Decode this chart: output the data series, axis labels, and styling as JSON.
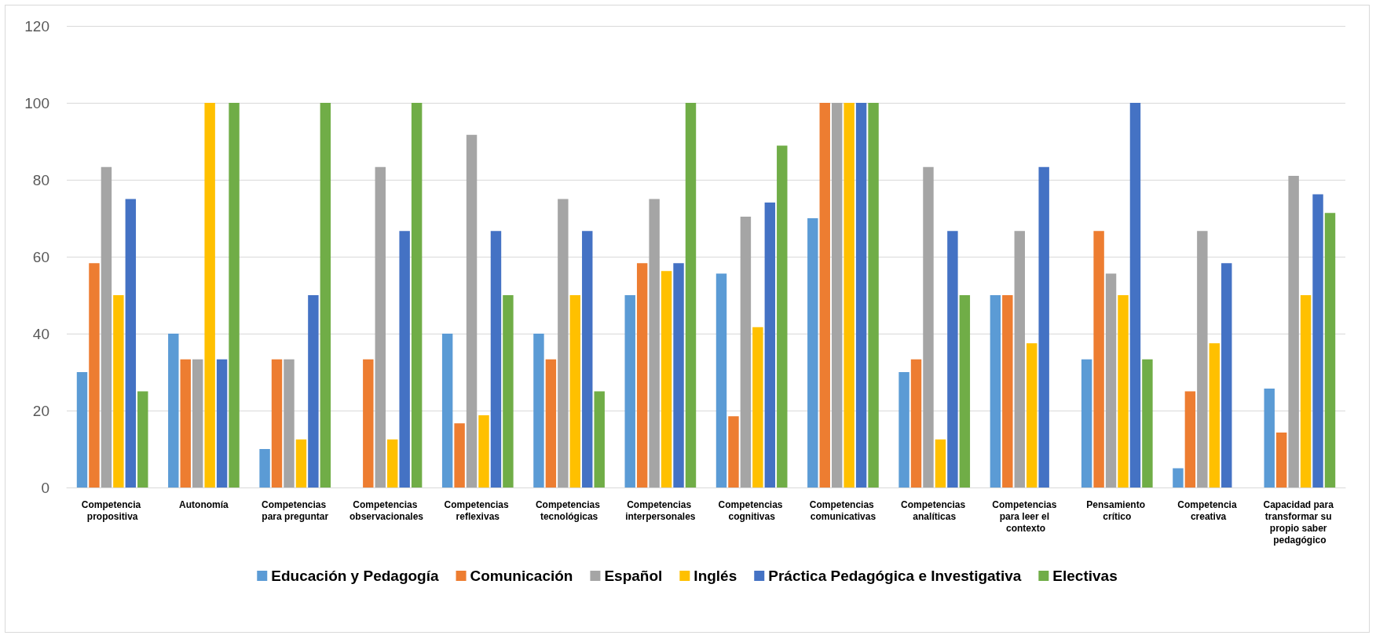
{
  "chart_data": {
    "type": "bar",
    "categories": [
      "Competencia propositiva",
      "Autonomía",
      "Competencias para preguntar",
      "Competencias observacionales",
      "Competencias reflexivas",
      "Competencias tecnológicas",
      "Competencias interpersonales",
      "Competencias cognitivas",
      "Competencias comunicativas",
      "Competencias analíticas",
      "Competencias para leer el contexto",
      "Pensamiento crítico",
      "Competencia creativa",
      "Capacidad para transformar su propio saber pedagógico"
    ],
    "series": [
      {
        "name": "Educación y Pedagogía",
        "color": "#5b9bd5",
        "values": [
          30,
          40,
          10,
          0,
          40,
          40,
          50,
          55.6,
          70,
          30,
          50,
          33.3,
          5,
          25.7
        ]
      },
      {
        "name": "Comunicación",
        "color": "#ed7d31",
        "values": [
          58.3,
          33.3,
          33.3,
          33.3,
          16.7,
          33.3,
          58.3,
          18.5,
          100,
          33.3,
          50,
          66.7,
          25,
          14.3
        ]
      },
      {
        "name": "Español",
        "color": "#a5a5a5",
        "values": [
          83.3,
          33.3,
          33.3,
          83.3,
          91.7,
          75,
          75,
          70.4,
          100,
          83.3,
          66.7,
          55.6,
          66.7,
          81
        ]
      },
      {
        "name": "Inglés",
        "color": "#ffc000",
        "values": [
          50,
          100,
          12.5,
          12.5,
          18.8,
          50,
          56.3,
          41.7,
          100,
          12.5,
          37.5,
          50,
          37.5,
          50
        ]
      },
      {
        "name": "Práctica Pedagógica e Investigativa",
        "color": "#4472c4",
        "values": [
          75,
          33.3,
          50,
          66.7,
          66.7,
          66.7,
          58.3,
          74.1,
          100,
          66.7,
          83.3,
          100,
          58.3,
          76.2
        ]
      },
      {
        "name": "Electivas",
        "color": "#70ad47",
        "values": [
          25,
          100,
          100,
          100,
          50,
          25,
          100,
          88.9,
          100,
          50,
          0,
          33.3,
          0,
          71.4
        ]
      }
    ],
    "ylim": [
      0,
      120
    ],
    "yticks": [
      0,
      20,
      40,
      60,
      80,
      100,
      120
    ],
    "grid": "y",
    "legend": "bottom"
  }
}
